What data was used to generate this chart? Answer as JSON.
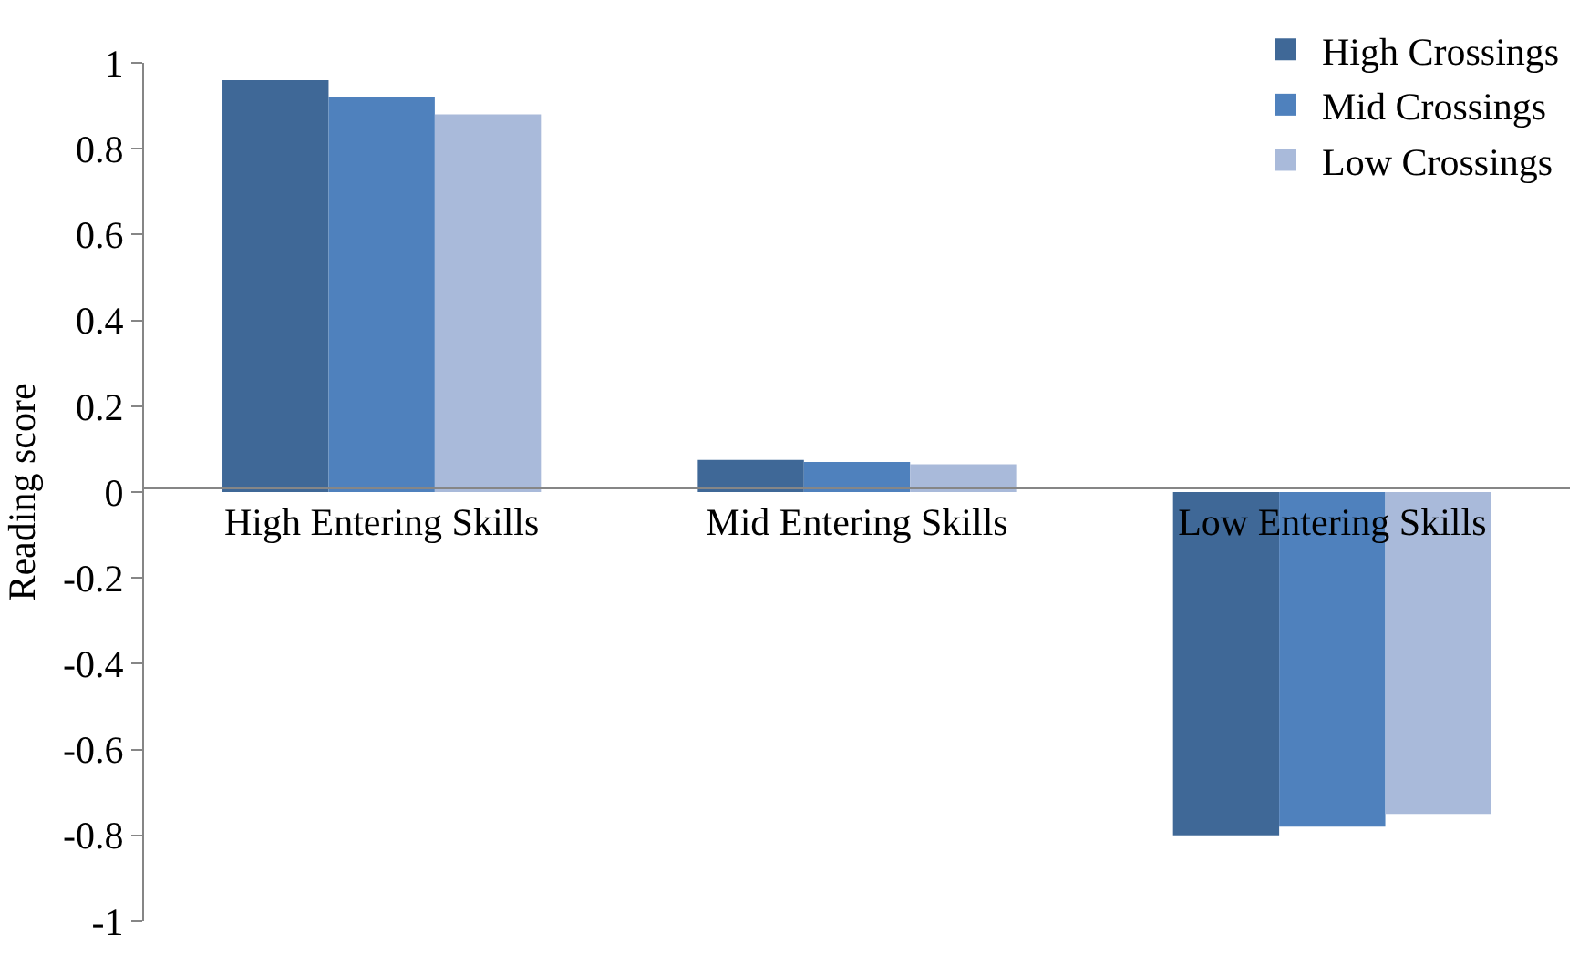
{
  "chart_data": {
    "type": "bar",
    "ylabel": "Reading score",
    "categories": [
      "High Entering Skills",
      "Mid Entering Skills",
      "Low Entering Skills"
    ],
    "series": [
      {
        "name": "High Crossings",
        "color": "#3f6897",
        "values": [
          0.96,
          0.075,
          -0.8
        ]
      },
      {
        "name": "Mid Crossings",
        "color": "#4f81bd",
        "values": [
          0.92,
          0.07,
          -0.78
        ]
      },
      {
        "name": "Low Crossings",
        "color": "#a9bada",
        "values": [
          0.88,
          0.065,
          -0.75
        ]
      }
    ],
    "ylim": [
      -1,
      1
    ],
    "yticks": [
      -1,
      {
        "value": -0.8,
        "label": "-0.8"
      },
      {
        "value": -0.6,
        "label": "-0.6"
      },
      {
        "value": -0.4,
        "label": "-0.4"
      },
      {
        "value": -0.2,
        "label": "-0.2"
      },
      0,
      {
        "value": 0.2,
        "label": "0.2"
      },
      {
        "value": 0.4,
        "label": "0.4"
      },
      {
        "value": 0.6,
        "label": "0.6"
      },
      {
        "value": 0.8,
        "label": "0.8"
      },
      1
    ],
    "legend": "top right"
  }
}
